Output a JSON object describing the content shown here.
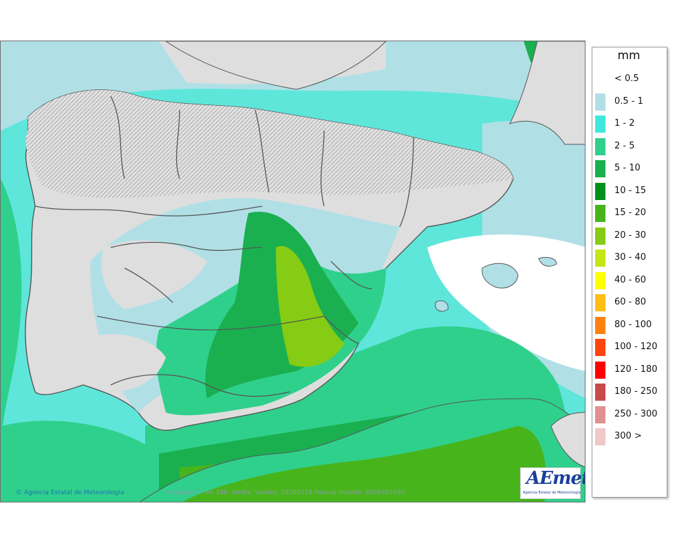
{
  "map": {
    "credit": "Agencia Estatal de Meteorología",
    "validity": "Precipitación en 24h. media. Validez: 20260318 Pasada modelo: 2026031000",
    "logo_text": "AEmet",
    "logo_subtitle": "Agencia Estatal de Meteorología",
    "colors": {
      "sea_base": "#5fe6da",
      "land_dry": "#dedede",
      "relief": "#bdbdbd",
      "borders": "#555555"
    }
  },
  "legend": {
    "unit": "mm",
    "items": [
      {
        "label": "< 0.5",
        "color": ""
      },
      {
        "label": "0.5 - 1",
        "color": "#b0e0e6"
      },
      {
        "label": "1 - 2",
        "color": "#40e8dc"
      },
      {
        "label": "2 - 5",
        "color": "#2fd08c"
      },
      {
        "label": "5 - 10",
        "color": "#1ab050"
      },
      {
        "label": "10 - 15",
        "color": "#00901c"
      },
      {
        "label": "15 - 20",
        "color": "#48b41c"
      },
      {
        "label": "20 - 30",
        "color": "#86cc14"
      },
      {
        "label": "30 - 40",
        "color": "#c4e614"
      },
      {
        "label": "40 - 60",
        "color": "#ffff00"
      },
      {
        "label": "60 - 80",
        "color": "#ffbe16"
      },
      {
        "label": "80 - 100",
        "color": "#ff8012"
      },
      {
        "label": "100 - 120",
        "color": "#ff4410"
      },
      {
        "label": "120 - 180",
        "color": "#ff0000"
      },
      {
        "label": "180 - 250",
        "color": "#c84a4a"
      },
      {
        "label": "250 - 300",
        "color": "#e09090"
      },
      {
        "label": "300 >",
        "color": "#f0c8c8"
      }
    ]
  }
}
